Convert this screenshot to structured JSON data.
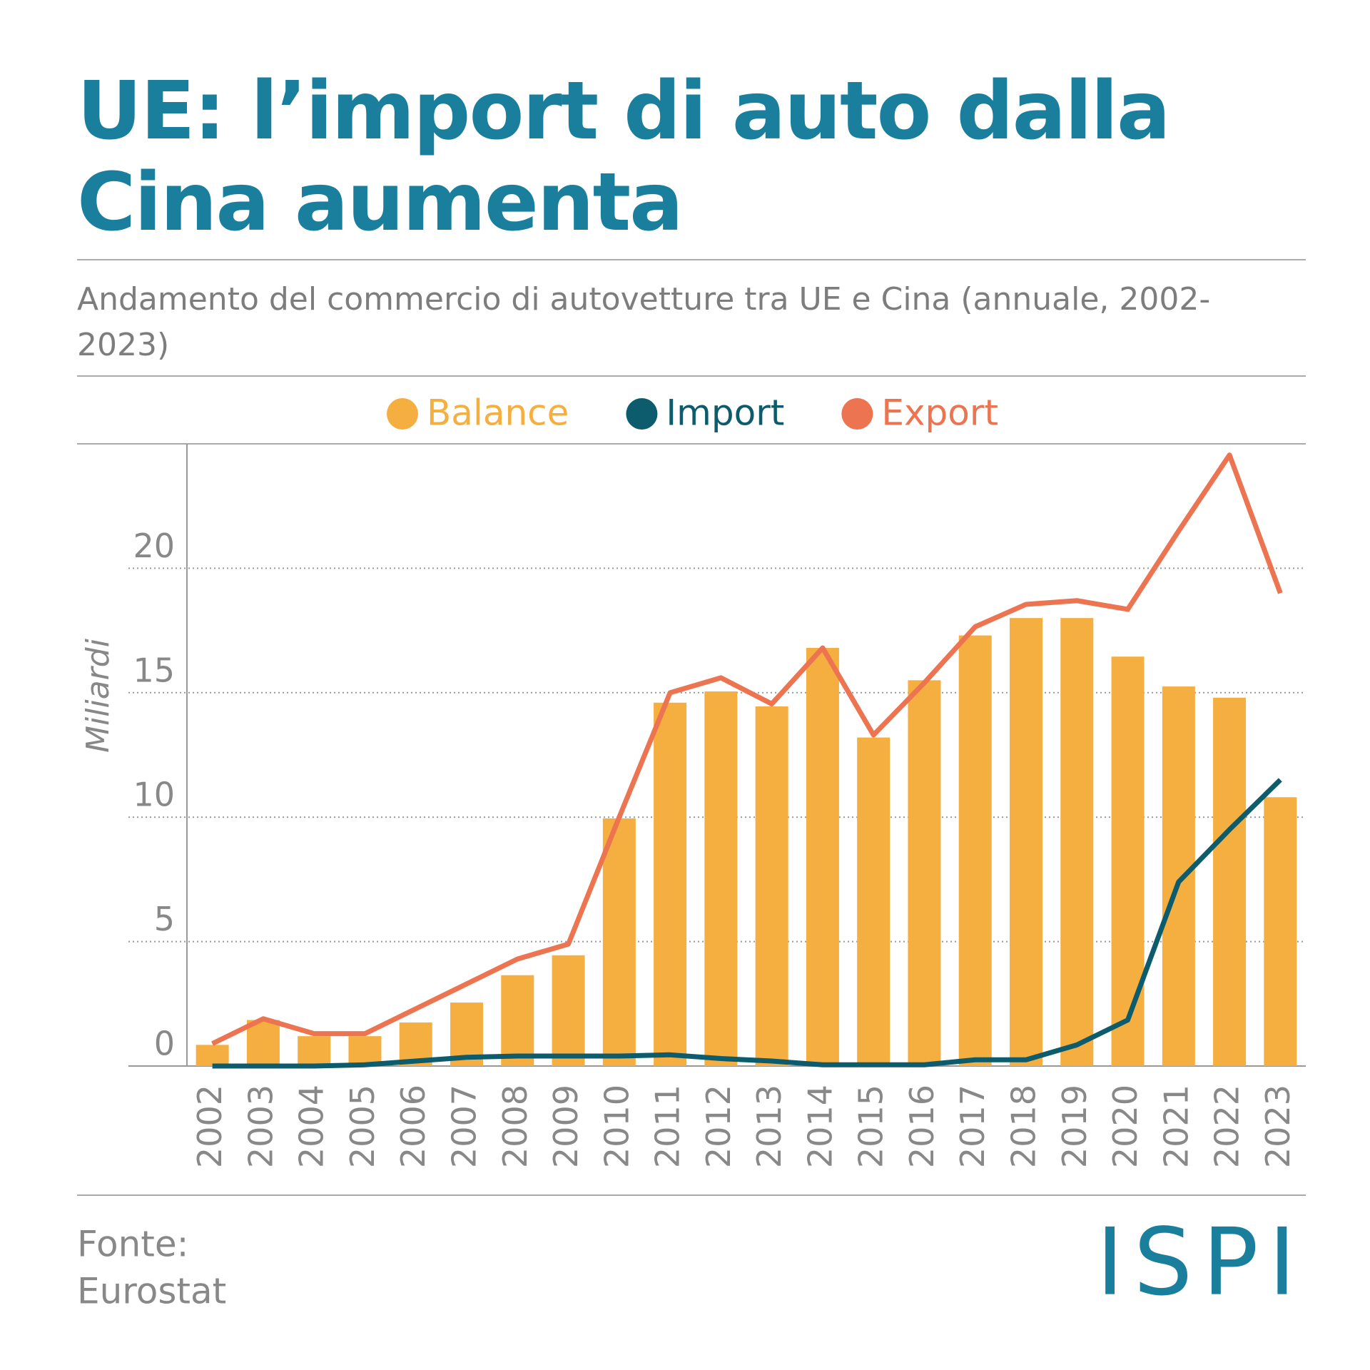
{
  "title": "UE: l’import di auto dalla Cina aumenta",
  "subtitle": "Andamento del commercio di autovetture tra UE e Cina (annuale, 2002-2023)",
  "source": [
    "Fonte:",
    "Eurostat"
  ],
  "logo": "ISPI",
  "chart_data": {
    "type": "bar",
    "y_label": "Miliardi",
    "categories": [
      "2002",
      "2003",
      "2004",
      "2005",
      "2006",
      "2007",
      "2008",
      "2009",
      "2010",
      "2011",
      "2012",
      "2013",
      "2014",
      "2015",
      "2016",
      "2017",
      "2018",
      "2019",
      "2020",
      "2021",
      "2022",
      "2023"
    ],
    "series": [
      {
        "name": "Balance",
        "type": "bar",
        "color": "#f5ae40",
        "values": [
          0.85,
          1.85,
          1.2,
          1.2,
          1.75,
          2.55,
          3.65,
          4.45,
          9.95,
          14.6,
          15.05,
          14.45,
          16.8,
          13.2,
          15.5,
          17.3,
          18.0,
          18.0,
          16.45,
          15.25,
          14.8,
          10.8
        ]
      },
      {
        "name": "Import",
        "type": "line",
        "color": "#0d5c6e",
        "values": [
          0,
          0,
          0,
          0.05,
          0.2,
          0.35,
          0.4,
          0.4,
          0.4,
          0.45,
          0.3,
          0.2,
          0.05,
          0.05,
          0.05,
          0.25,
          0.25,
          0.85,
          1.85,
          7.4,
          9.5,
          11.5
        ]
      },
      {
        "name": "Export",
        "type": "line",
        "color": "#ec7450",
        "values": [
          0.9,
          1.9,
          1.3,
          1.3,
          2.3,
          3.3,
          4.3,
          4.9,
          10.0,
          15.0,
          15.6,
          14.55,
          16.8,
          13.3,
          15.4,
          17.65,
          18.55,
          18.7,
          18.35,
          21.5,
          24.55,
          19.0
        ]
      }
    ],
    "ylim": [
      0,
      25
    ],
    "yticks": [
      0,
      5,
      10,
      15,
      20
    ],
    "grid": true
  }
}
